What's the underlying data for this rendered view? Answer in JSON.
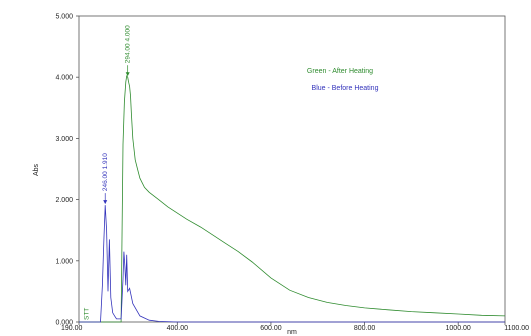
{
  "chart_data": {
    "type": "line",
    "xlabel": "nm",
    "ylabel": "Abs",
    "xlim": [
      190.0,
      1100.0
    ],
    "ylim": [
      0.0,
      5.0
    ],
    "x_ticks": [
      "190.00",
      "400.00",
      "600.00",
      "800.00",
      "1000.00",
      "1100.00"
    ],
    "x_tick_values": [
      190,
      400,
      600,
      800,
      1000,
      1100
    ],
    "y_ticks": [
      "0.000",
      "1.000",
      "2.000",
      "3.000",
      "4.000",
      "5.000"
    ],
    "y_tick_values": [
      0,
      1,
      2,
      3,
      4,
      5
    ],
    "grid": false,
    "legend": [
      {
        "label": "Green - After Heating",
        "color": "#2e8b2e"
      },
      {
        "label": "Blue - Before Heating",
        "color": "#3333bb"
      }
    ],
    "annotations": [
      {
        "label": "294.00  4.000",
        "color": "#2e8b2e",
        "x": 294,
        "y": 4.0
      },
      {
        "label": "246.00  1.910",
        "color": "#3333bb",
        "x": 246,
        "y": 1.91
      },
      {
        "label": "STT",
        "color": "#2e8b2e",
        "x": 206,
        "y": 0.02
      }
    ],
    "series": [
      {
        "name": "Green - After Heating",
        "color": "#2e8b2e",
        "x": [
          190,
          280,
          284,
          287,
          290,
          292,
          294,
          296,
          298,
          300,
          302,
          305,
          310,
          315,
          320,
          330,
          340,
          360,
          380,
          400,
          420,
          450,
          480,
          500,
          530,
          560,
          600,
          640,
          680,
          720,
          760,
          800,
          850,
          900,
          950,
          1000,
          1050,
          1100
        ],
        "y": [
          0.0,
          0.0,
          2.9,
          3.6,
          3.92,
          4.02,
          4.0,
          3.92,
          3.85,
          3.7,
          3.4,
          3.0,
          2.65,
          2.5,
          2.35,
          2.2,
          2.12,
          2.0,
          1.88,
          1.78,
          1.68,
          1.55,
          1.4,
          1.3,
          1.15,
          0.98,
          0.72,
          0.52,
          0.4,
          0.32,
          0.27,
          0.23,
          0.2,
          0.17,
          0.15,
          0.13,
          0.11,
          0.1
        ]
      },
      {
        "name": "Blue - Before Heating",
        "color": "#3333bb",
        "x": [
          190,
          236,
          240,
          243,
          246,
          249,
          252,
          255,
          258,
          262,
          266,
          270,
          280,
          284,
          286,
          288,
          290,
          292,
          294,
          298,
          305,
          320,
          340,
          360,
          400,
          1100
        ],
        "y": [
          0.0,
          0.0,
          0.6,
          1.3,
          1.91,
          1.5,
          0.5,
          1.35,
          0.4,
          0.15,
          0.1,
          0.05,
          0.05,
          0.7,
          1.15,
          0.9,
          0.6,
          1.1,
          0.5,
          0.55,
          0.3,
          0.1,
          0.03,
          0.01,
          0.0,
          0.0
        ]
      }
    ]
  }
}
